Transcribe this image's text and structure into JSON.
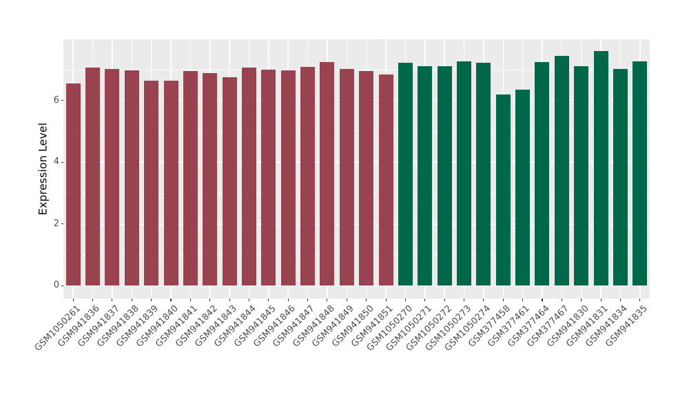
{
  "chart_data": {
    "type": "bar",
    "title": "",
    "xlabel": "",
    "ylabel": "Expression Level",
    "categories": [
      "GSM1050261",
      "GSM941836",
      "GSM941837",
      "GSM941838",
      "GSM941839",
      "GSM941840",
      "GSM941841",
      "GSM941842",
      "GSM941843",
      "GSM941844",
      "GSM941845",
      "GSM941846",
      "GSM941847",
      "GSM941848",
      "GSM941849",
      "GSM941850",
      "GSM941851",
      "GSM1050270",
      "GSM1050271",
      "GSM1050272",
      "GSM1050273",
      "GSM1050274",
      "GSM377458",
      "GSM377461",
      "GSM377464",
      "GSM377467",
      "GSM941830",
      "GSM941831",
      "GSM941834",
      "GSM941835"
    ],
    "values": [
      6.56,
      7.06,
      7.01,
      6.98,
      6.64,
      6.63,
      6.95,
      6.89,
      6.75,
      7.06,
      6.99,
      6.98,
      7.09,
      7.24,
      7.02,
      6.95,
      6.85,
      7.22,
      7.1,
      7.1,
      7.26,
      7.22,
      6.19,
      6.35,
      7.24,
      7.44,
      7.11,
      7.6,
      7.02,
      7.26
    ],
    "bar_colors": [
      "#9A4350",
      "#9A4350",
      "#9A4350",
      "#9A4350",
      "#9A4350",
      "#9A4350",
      "#9A4350",
      "#9A4350",
      "#9A4350",
      "#9A4350",
      "#9A4350",
      "#9A4350",
      "#9A4350",
      "#9A4350",
      "#9A4350",
      "#9A4350",
      "#9A4350",
      "#00674A",
      "#00674A",
      "#00674A",
      "#00674A",
      "#00674A",
      "#00674A",
      "#00674A",
      "#00674A",
      "#00674A",
      "#00674A",
      "#00674A",
      "#00674A",
      "#00674A"
    ],
    "group_colors": {
      "left_group": "#9A4350",
      "right_group": "#00674A"
    },
    "yticks": [
      "0",
      "2",
      "4",
      "6"
    ],
    "ytick_values": [
      0,
      2,
      4,
      6
    ],
    "minor_gridline_values": [
      1,
      3,
      5,
      7
    ],
    "ylim": [
      -0.4,
      7.99
    ],
    "grid": true,
    "legend": "none",
    "panel_bg": "#EBEBEB",
    "grid_color": "#FFFFFF",
    "tick_label_color": "#4D4D4D",
    "axis_title_color": "#000000"
  }
}
